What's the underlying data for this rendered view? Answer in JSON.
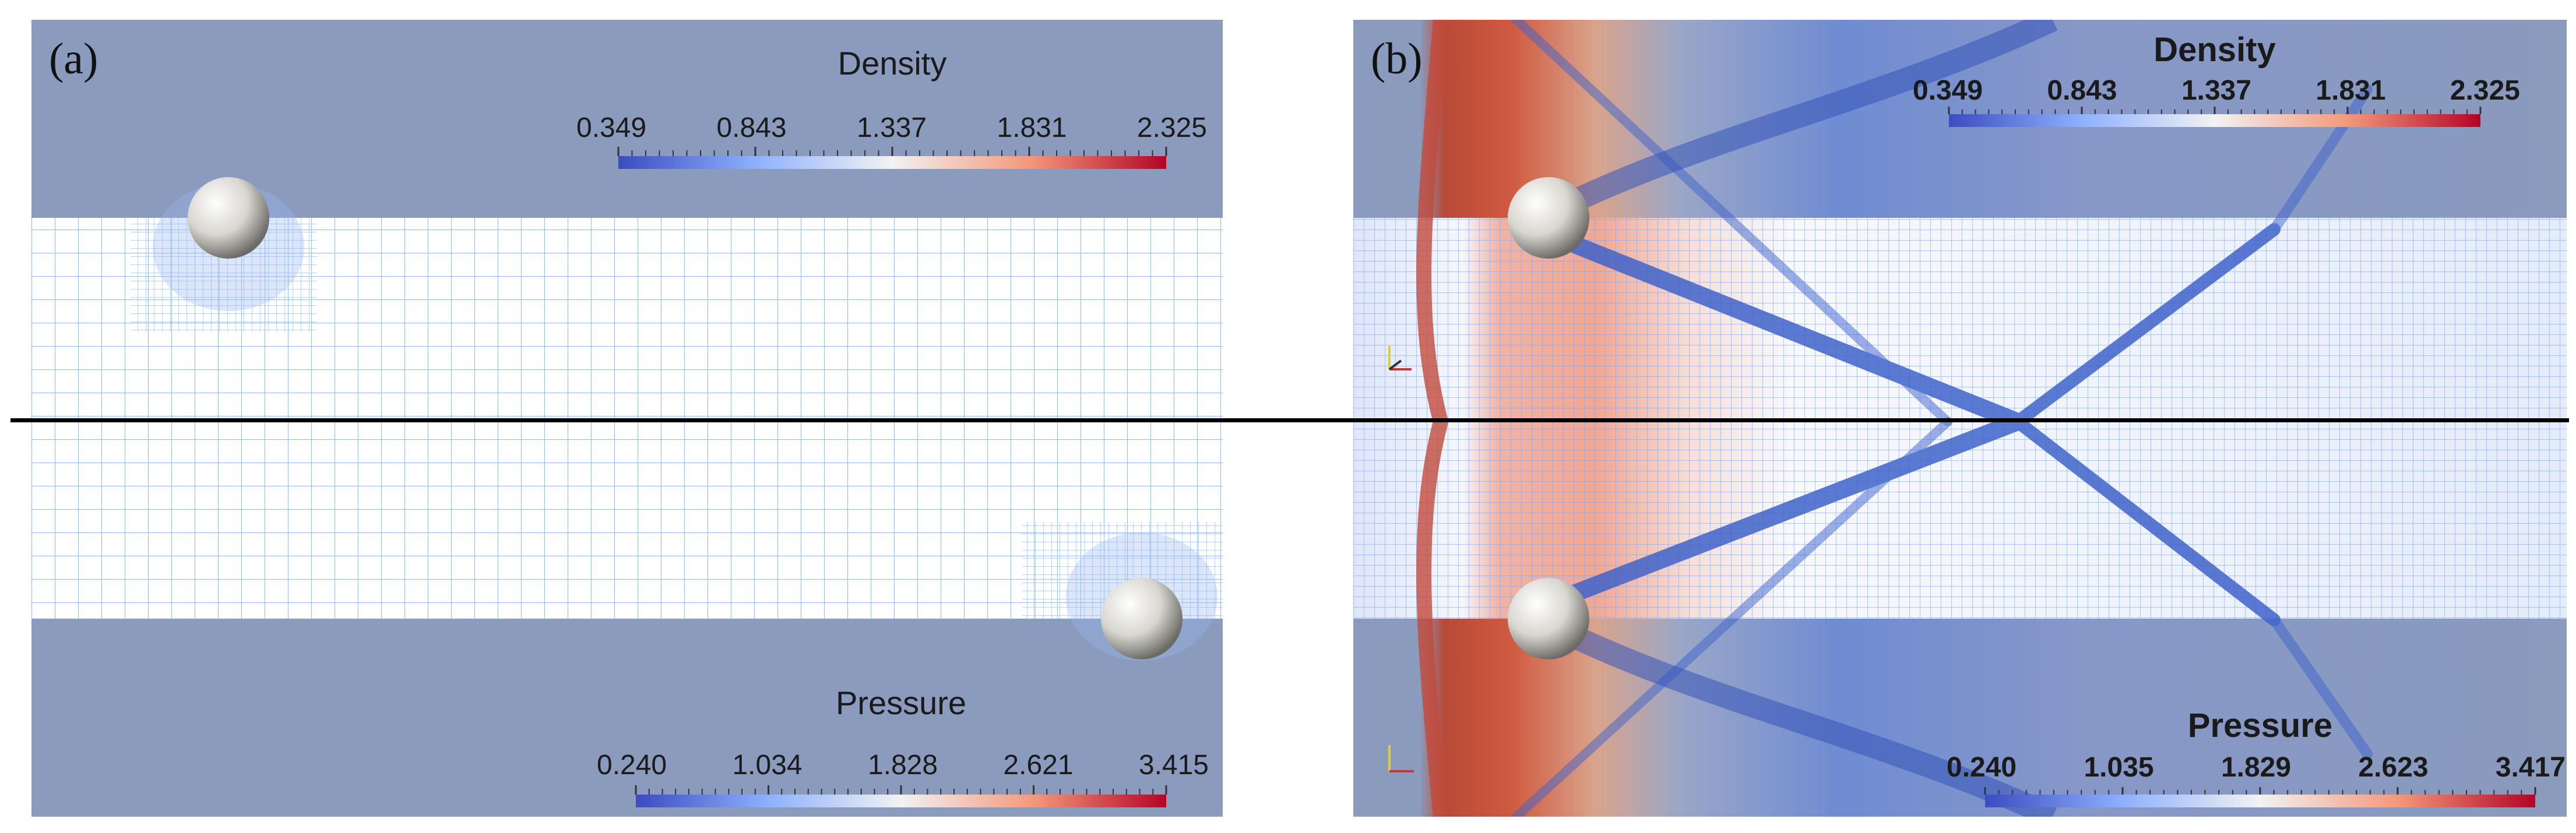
{
  "panels": [
    {
      "label": "(a)",
      "density": {
        "title": "Density",
        "ticks": [
          "0.349",
          "0.843",
          "1.337",
          "1.831",
          "2.325"
        ]
      },
      "pressure": {
        "title": "Pressure",
        "ticks": [
          "0.240",
          "1.034",
          "1.828",
          "2.621",
          "3.415"
        ]
      }
    },
    {
      "label": "(b)",
      "density": {
        "title": "Density",
        "ticks": [
          "0.349",
          "0.843",
          "1.337",
          "1.831",
          "2.325"
        ]
      },
      "pressure": {
        "title": "Pressure",
        "ticks": [
          "0.240",
          "1.035",
          "1.829",
          "2.623",
          "3.417"
        ]
      }
    }
  ],
  "colors": {
    "background_field": "#8a9bbd",
    "mesh_line": "#9bb8ec",
    "colormap_low": "#3b4cc0",
    "colormap_mid": "#f2f2f2",
    "colormap_high": "#b40426",
    "divider": "#000000"
  }
}
